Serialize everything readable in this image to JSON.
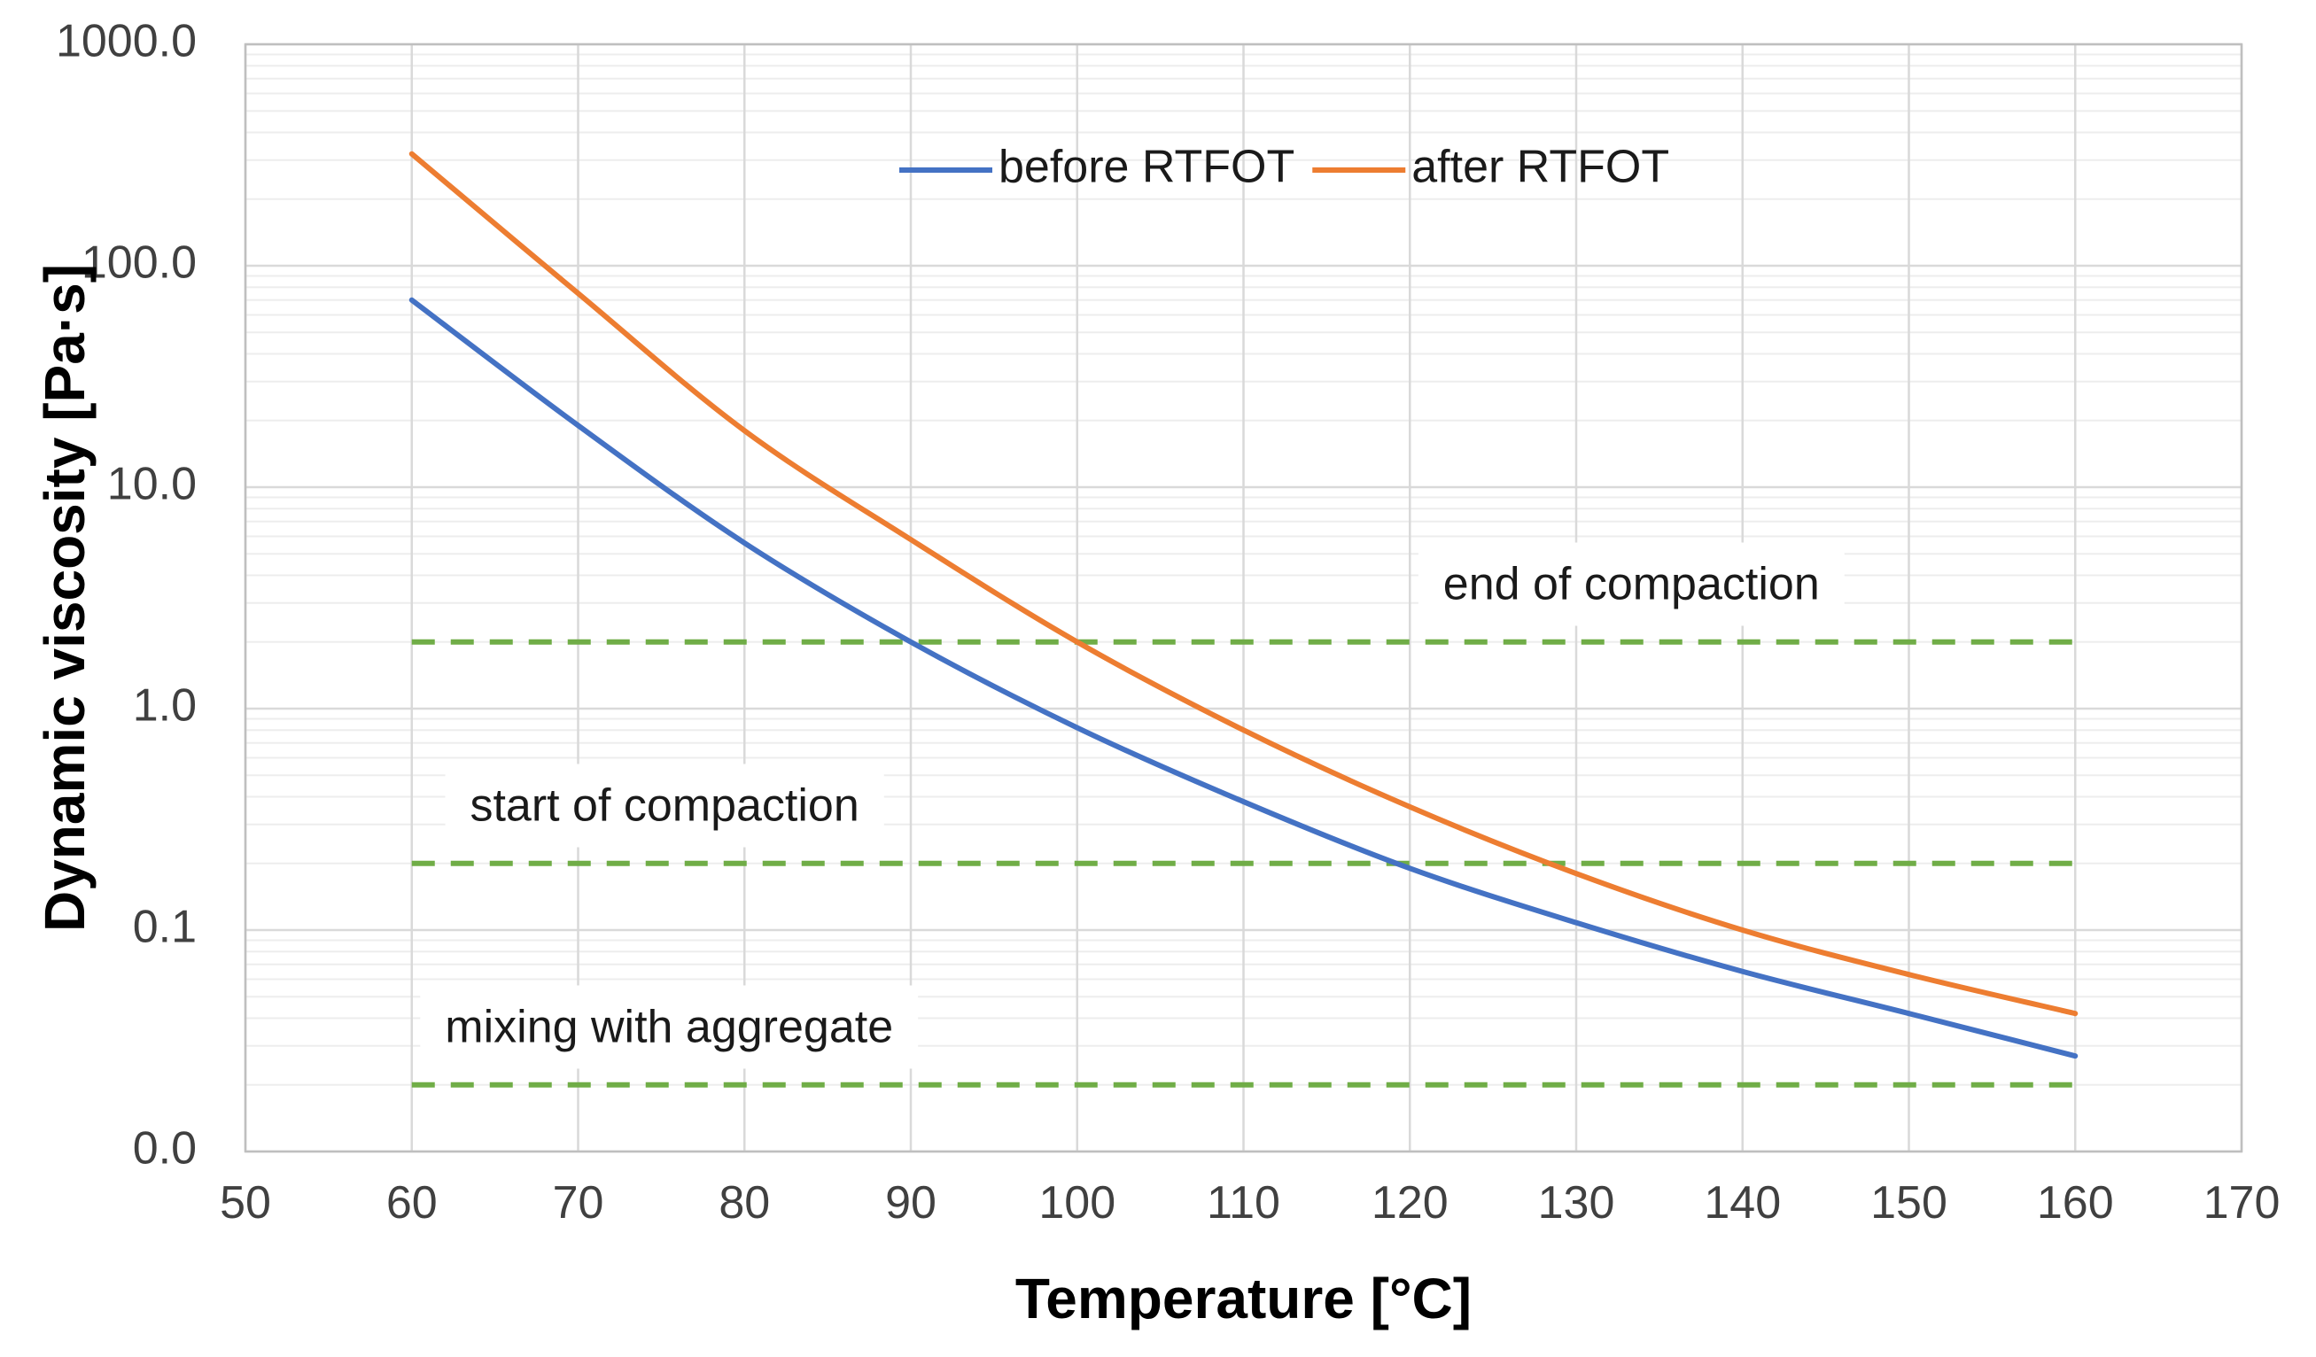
{
  "chart_data": {
    "type": "line",
    "title": "",
    "xlabel": "Temperature [°C]",
    "ylabel": "Dynamic viscosity [Pa·s]",
    "xlim": [
      50,
      170
    ],
    "ylim": [
      0.01,
      1000
    ],
    "yscale": "log",
    "grid": true,
    "legend_position": "top-center",
    "x_ticks": [
      50,
      60,
      70,
      80,
      90,
      100,
      110,
      120,
      130,
      140,
      150,
      160,
      170
    ],
    "x_tick_labels": [
      "50",
      "60",
      "70",
      "80",
      "90",
      "100",
      "110",
      "120",
      "130",
      "140",
      "150",
      "160",
      "170"
    ],
    "y_ticks": [
      0.01,
      0.1,
      1,
      10,
      100,
      1000
    ],
    "y_tick_labels": [
      "0.0",
      "0.1",
      "1.0",
      "10.0",
      "100.0",
      "1000.0"
    ],
    "series": [
      {
        "name": "before RTFOT",
        "color": "#4472C4",
        "x": [
          60,
          70,
          80,
          90,
          100,
          110,
          120,
          130,
          140,
          150,
          160
        ],
        "values": [
          70,
          19,
          5.6,
          2.0,
          0.82,
          0.38,
          0.19,
          0.108,
          0.065,
          0.042,
          0.027
        ]
      },
      {
        "name": "after RTFOT",
        "color": "#ED7D31",
        "x": [
          60,
          70,
          80,
          90,
          100,
          110,
          120,
          130,
          140,
          150,
          160
        ],
        "values": [
          320,
          75,
          18,
          5.8,
          2.0,
          0.8,
          0.36,
          0.18,
          0.1,
          0.063,
          0.042
        ]
      }
    ],
    "reference_lines": [
      {
        "label": "end of compaction",
        "y": 2.0,
        "x_start": 60,
        "x_end": 160,
        "color": "#70AD47",
        "label_anchor_x": 122
      },
      {
        "label": "start of compaction",
        "y": 0.2,
        "x_start": 60,
        "x_end": 160,
        "color": "#70AD47",
        "label_anchor_x": 63.5
      },
      {
        "label": "mixing with aggregate",
        "y": 0.02,
        "x_start": 60,
        "x_end": 160,
        "color": "#70AD47",
        "label_anchor_x": 62
      }
    ],
    "colors": {
      "grid_major": "#D9D9D9",
      "grid_minor": "#EDEDED",
      "axis": "#BFBFBF"
    }
  }
}
